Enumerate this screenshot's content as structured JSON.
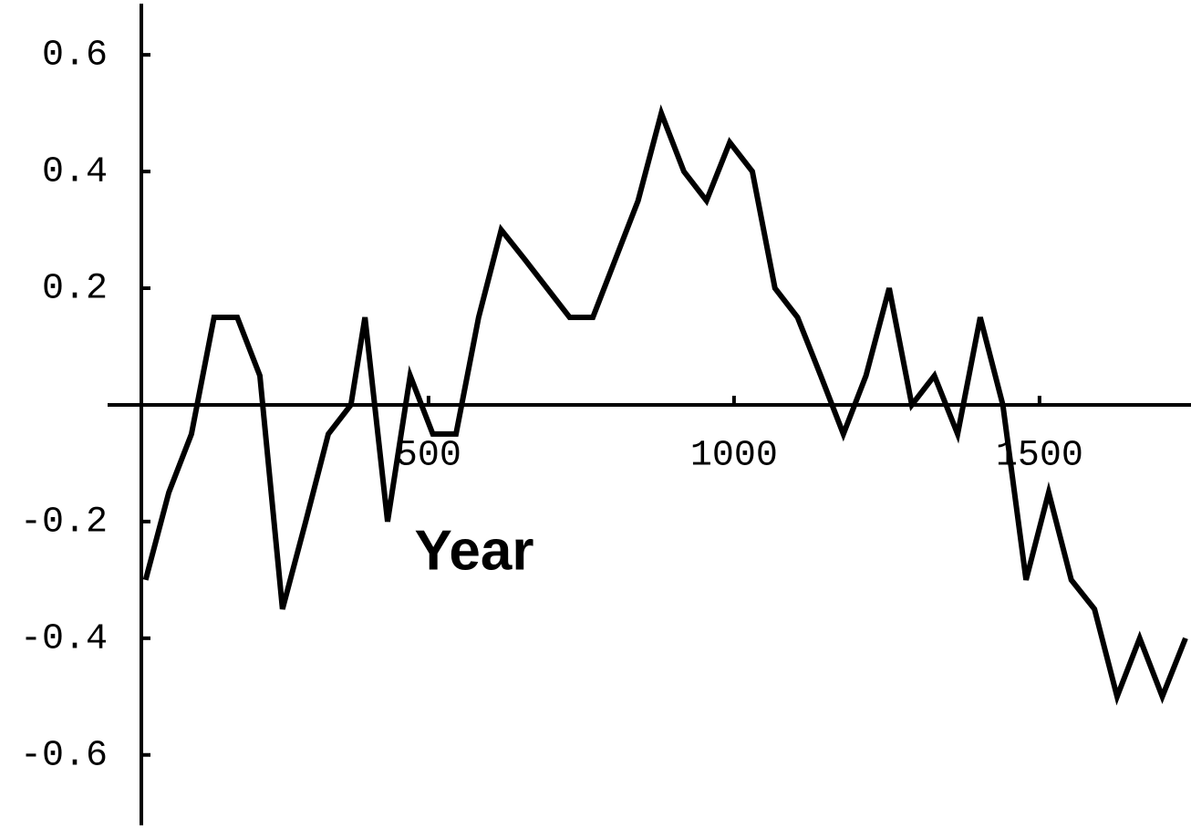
{
  "chart_data": {
    "type": "line",
    "xlabel": "Year",
    "x": [
      37,
      75,
      112,
      149,
      187,
      224,
      261,
      299,
      336,
      373,
      396,
      433,
      470,
      507,
      545,
      582,
      619,
      657,
      694,
      731,
      769,
      806,
      843,
      881,
      918,
      955,
      993,
      1030,
      1067,
      1104,
      1142,
      1179,
      1216,
      1254,
      1291,
      1328,
      1366,
      1403,
      1440,
      1478,
      1515,
      1552,
      1590,
      1627,
      1664,
      1701,
      1739
    ],
    "series": [
      {
        "color": "#000000",
        "values": [
          -0.3,
          -0.15,
          -0.05,
          0.15,
          0.15,
          0.05,
          -0.35,
          -0.2,
          -0.05,
          0.0,
          0.15,
          -0.2,
          0.05,
          -0.05,
          -0.05,
          0.15,
          0.3,
          0.25,
          0.2,
          0.15,
          0.15,
          0.25,
          0.35,
          0.5,
          0.4,
          0.35,
          0.45,
          0.4,
          0.2,
          0.15,
          0.05,
          -0.05,
          0.05,
          0.2,
          0.0,
          0.05,
          -0.05,
          0.15,
          0.0,
          -0.3,
          -0.15,
          -0.3,
          -0.35,
          -0.5,
          -0.4,
          -0.5,
          -0.4
        ]
      }
    ],
    "xlim": [
      30,
      1739
    ],
    "xticks": [
      500,
      1000,
      1500
    ],
    "ylim": [
      -0.727,
      0.694
    ],
    "yticks": [
      -0.6,
      -0.4,
      -0.2,
      0.2,
      0.4,
      0.6
    ]
  }
}
